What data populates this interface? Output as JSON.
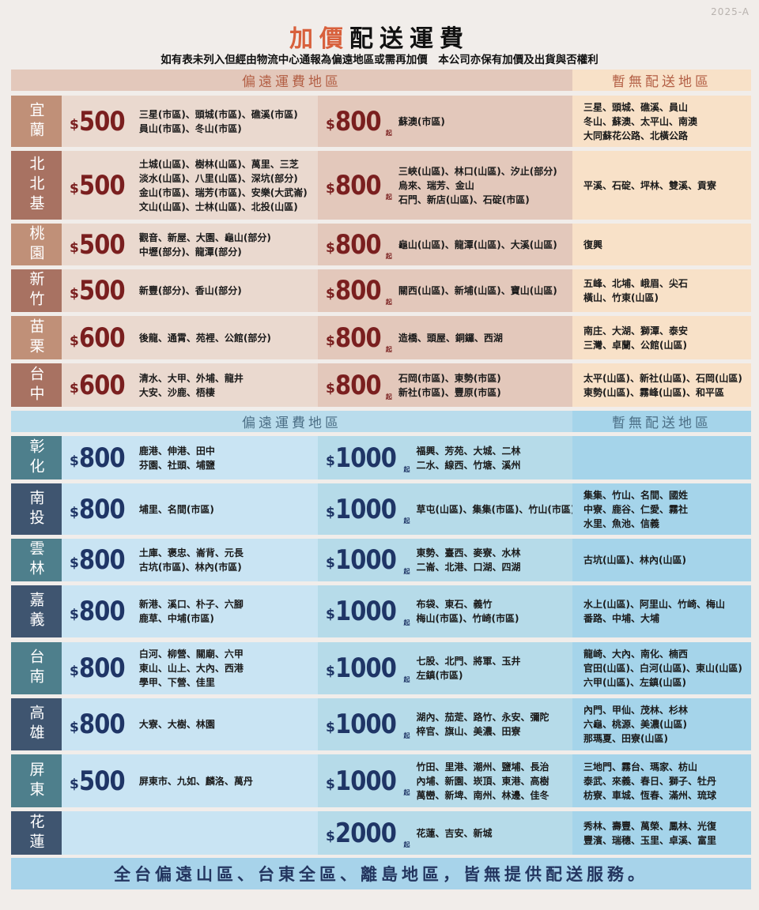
{
  "version": "2025-A",
  "title": {
    "red": "加價",
    "black": "配送運費"
  },
  "subtitle": "如有表未列入但經由物流中心通報為偏遠地區或需再加價　本公司亦保有加價及出貨與否權利",
  "colors": {
    "brown_price": "#7a1f1f",
    "blue_price": "#1f3566",
    "brown_header_text": "#b35f45",
    "blue_header_text": "#4c6f86"
  },
  "north": {
    "header": {
      "remote": "偏遠運費地區",
      "none": "暫無配送地區"
    },
    "rows": [
      {
        "region": "宜蘭",
        "p1": "500",
        "a1": [
          "三星(市區)、頭城(市區)、礁溪(市區)",
          "員山(市區)、冬山(市區)"
        ],
        "p2": "800",
        "a2": [
          "蘇澳(市區)"
        ],
        "none": [
          "三星、頭城、礁溪、員山",
          "冬山、蘇澳、太平山、南澳",
          "大同蘇花公路、北橫公路"
        ]
      },
      {
        "region": "北北基",
        "p1": "500",
        "a1": [
          "土城(山區)、樹林(山區)、萬里、三芝",
          "淡水(山區)、八里(山區)、深坑(部分)",
          "金山(市區)、瑞芳(市區)、安樂(大武崙)",
          "文山(山區)、士林(山區)、北投(山區)"
        ],
        "p2": "800",
        "a2": [
          "三峽(山區)、林口(山區)、汐止(部分)",
          "烏來、瑞芳、金山",
          "石門、新店(山區)、石碇(市區)"
        ],
        "none": [
          "平溪、石碇、坪林、雙溪、貢寮"
        ]
      },
      {
        "region": "桃園",
        "p1": "500",
        "a1": [
          "觀音、新屋、大園、龜山(部分)",
          "中壢(部分)、龍潭(部分)"
        ],
        "p2": "800",
        "a2": [
          "龜山(山區)、龍潭(山區)、大溪(山區)"
        ],
        "none": [
          "復興"
        ]
      },
      {
        "region": "新竹",
        "p1": "500",
        "a1": [
          "新豐(部分)、香山(部分)"
        ],
        "p2": "800",
        "a2": [
          "關西(山區)、新埔(山區)、寶山(山區)"
        ],
        "none": [
          "五峰、北埔、峨眉、尖石",
          "橫山、竹東(山區)"
        ]
      },
      {
        "region": "苗栗",
        "p1": "600",
        "a1": [
          "後龍、通霄、苑裡、公館(部分)"
        ],
        "p2": "800",
        "a2": [
          "造橋、頭屋、銅鑼、西湖"
        ],
        "none": [
          "南庄、大湖、獅潭、泰安",
          "三灣、卓蘭、公館(山區)"
        ]
      },
      {
        "region": "台中",
        "p1": "600",
        "a1": [
          "清水、大甲、外埔、龍井",
          "大安、沙鹿、梧棲"
        ],
        "p2": "800",
        "a2": [
          "石岡(市區)、東勢(市區)",
          "新社(市區)、豐原(市區)"
        ],
        "none": [
          "太平(山區)、新社(山區)、石岡(山區)",
          "東勢(山區)、霧峰(山區)、和平區"
        ]
      }
    ]
  },
  "south": {
    "header": {
      "remote": "偏遠運費地區",
      "none": "暫無配送地區"
    },
    "rows": [
      {
        "region": "彰化",
        "p1": "800",
        "a1": [
          "鹿港、伸港、田中",
          "芬園、社頭、埔鹽"
        ],
        "p2": "1000",
        "a2": [
          "福興、芳苑、大城、二林",
          "二水、線西、竹塘、溪州"
        ],
        "none": []
      },
      {
        "region": "南投",
        "p1": "800",
        "a1": [
          "埔里、名間(市區)"
        ],
        "p2": "1000",
        "a2": [
          "草屯(山區)、集集(市區)、竹山(市區)"
        ],
        "none": [
          "集集、竹山、名間、國姓",
          "中寮、鹿谷、仁愛、霧社",
          "水里、魚池、信義"
        ]
      },
      {
        "region": "雲林",
        "p1": "800",
        "a1": [
          "土庫、褒忠、崙背、元長",
          "古坑(市區)、林內(市區)"
        ],
        "p2": "1000",
        "a2": [
          "東勢、臺西、麥寮、水林",
          "二崙、北港、口湖、四湖"
        ],
        "none": [
          "古坑(山區)、林內(山區)"
        ]
      },
      {
        "region": "嘉義",
        "p1": "800",
        "a1": [
          "新港、溪口、朴子、六腳",
          "鹿草、中埔(市區)"
        ],
        "p2": "1000",
        "a2": [
          "布袋、東石、義竹",
          "梅山(市區)、竹崎(市區)"
        ],
        "none": [
          "水上(山區)、阿里山、竹崎、梅山",
          "番路、中埔、大埔"
        ]
      },
      {
        "region": "台南",
        "p1": "800",
        "a1": [
          "白河、柳營、關廟、六甲",
          "東山、山上、大內、西港",
          "學甲、下營、佳里"
        ],
        "p2": "1000",
        "a2": [
          "七股、北門、將軍、玉井",
          "左鎮(市區)"
        ],
        "none": [
          "龍崎、大內、南化、楠西",
          "官田(山區)、白河(山區)、東山(山區)",
          "六甲(山區)、左鎮(山區)"
        ]
      },
      {
        "region": "高雄",
        "p1": "800",
        "a1": [
          "大寮、大樹、林園"
        ],
        "p2": "1000",
        "a2": [
          "湖內、茄萣、路竹、永安、彌陀",
          "梓官、旗山、美濃、田寮"
        ],
        "none": [
          "內門、甲仙、茂林、杉林",
          "六龜、桃源、美濃(山區)",
          "那瑪夏、田寮(山區)"
        ]
      },
      {
        "region": "屏東",
        "p1": "500",
        "a1": [
          "屏東市、九如、麟洛、萬丹"
        ],
        "p2": "1000",
        "a2": [
          "竹田、里港、潮州、鹽埔、長治",
          "內埔、新園、崁頂、東港、高樹",
          "萬巒、新埤、南州、林邊、佳冬"
        ],
        "none": [
          "三地門、霧台、瑪家、枋山",
          "泰武、來義、春日、獅子、牡丹",
          "枋寮、車城、恆春、滿州、琉球"
        ]
      },
      {
        "region": "花蓮",
        "p1": "",
        "a1": [],
        "p2": "2000",
        "a2": [
          "花蓮、吉安、新城"
        ],
        "none": [
          "秀林、壽豐、萬榮、鳳林、光復",
          "豐濱、瑞穗、玉里、卓溪、富里"
        ]
      }
    ]
  },
  "currency": "$",
  "from_suffix": "起",
  "footer": "全台偏遠山區、台東全區、離島地區，皆無提供配送服務。"
}
